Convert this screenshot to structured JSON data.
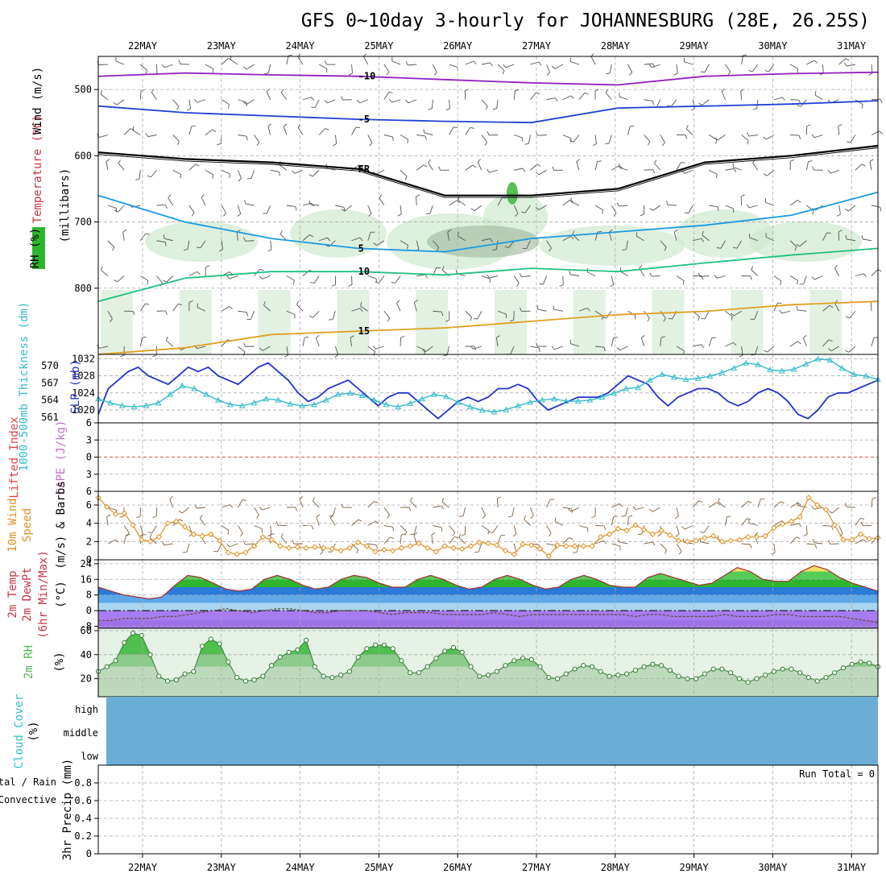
{
  "title": "GFS 0~10day 3-hourly for JOHANNESBURG (28E, 26.25S)",
  "dates": [
    "22MAY",
    "23MAY",
    "24MAY",
    "25MAY",
    "26MAY",
    "27MAY",
    "28MAY",
    "29MAY",
    "30MAY",
    "31MAY"
  ],
  "run_total": "Run Total = 0",
  "colors": {
    "grid": "#aaaaaa",
    "rh_band": "#2db52d",
    "pressure_slp": "#2233cc",
    "thickness": "#33bbcc",
    "temp_band": "#3377dd",
    "dewpt_band": "#a77cf0",
    "rh2m": "#55b855",
    "cloud": "#6aaed6",
    "wind10": "#e09020",
    "barb": "#806040"
  },
  "chart_data": [
    {
      "type": "contour",
      "name": "upper_air",
      "ylabel": "Wind (m/s)",
      "ylabel_parts": [
        "RH (%)",
        "Temperature (°C)",
        "Wind (m/s)"
      ],
      "yunit_label": "(millibars)",
      "yticks": [
        500,
        600,
        700,
        800
      ],
      "ylim": [
        900,
        450
      ],
      "temperature_contours": [
        {
          "label": "-10",
          "color": "#9020c0",
          "level_mb": [
            480,
            475,
            478,
            480,
            485,
            490,
            493,
            480,
            476,
            474
          ]
        },
        {
          "label": "-5",
          "color": "#2040d0",
          "level_mb": [
            525,
            535,
            540,
            545,
            548,
            550,
            528,
            525,
            522,
            517
          ]
        },
        {
          "label": "FR",
          "color": "#000000",
          "level_mb": [
            595,
            605,
            610,
            620,
            660,
            660,
            650,
            610,
            600,
            585
          ]
        },
        {
          "label": "5",
          "color": "#1a9ae0",
          "level_mb": [
            660,
            700,
            725,
            740,
            745,
            725,
            715,
            705,
            690,
            655
          ]
        },
        {
          "label": "10",
          "color": "#20c080",
          "level_mb": [
            820,
            785,
            775,
            775,
            780,
            770,
            775,
            762,
            750,
            740
          ]
        },
        {
          "label": "15",
          "color": "#e0a020",
          "level_mb": [
            900,
            890,
            870,
            865,
            860,
            850,
            840,
            835,
            825,
            820
          ]
        }
      ]
    },
    {
      "type": "line",
      "name": "slp_thickness",
      "ylabel_left": "1000-500mb Thickness (dm)",
      "ylabel_right": "SLP (mb)",
      "yticks_thickness": [
        561,
        564,
        567,
        570
      ],
      "yticks_slp": [
        1020,
        1024,
        1028,
        1032
      ],
      "series": [
        {
          "name": "SLP (mb)",
          "values": [
            1019,
            1025,
            1027,
            1029,
            1030,
            1028,
            1027,
            1026,
            1028,
            1030,
            1029,
            1030,
            1028,
            1027,
            1026,
            1028,
            1030,
            1031,
            1029,
            1027,
            1024,
            1022,
            1023,
            1025,
            1026,
            1027,
            1025,
            1023,
            1021,
            1023,
            1024,
            1024,
            1022,
            1020,
            1018,
            1020,
            1022,
            1023,
            1022,
            1023,
            1025,
            1025,
            1026,
            1025,
            1022,
            1020,
            1021,
            1022,
            1023,
            1023,
            1023,
            1024,
            1026,
            1028,
            1027,
            1026,
            1023,
            1021,
            1023,
            1024,
            1025,
            1025,
            1024,
            1022,
            1021,
            1022,
            1024,
            1025,
            1024,
            1022,
            1019,
            1018,
            1020,
            1023,
            1024,
            1024,
            1025,
            1026,
            1027
          ]
        },
        {
          "name": "Thickness (dm)",
          "values": [
            564.2,
            563.5,
            563,
            562.8,
            563,
            563.5,
            565,
            566.5,
            566,
            565,
            564,
            563.2,
            563,
            563.5,
            564.2,
            564,
            563.3,
            563,
            563.2,
            564,
            565,
            565.2,
            564.8,
            564,
            563.2,
            562.8,
            563.4,
            564.2,
            565,
            564.6,
            563.6,
            562.8,
            562.2,
            561.9,
            562.3,
            563,
            563.6,
            564,
            564.2,
            563.8,
            563.8,
            564,
            564.5,
            565.2,
            566,
            566.2,
            567.5,
            568.5,
            568,
            567.6,
            567.8,
            568.2,
            568.8,
            569.6,
            570.5,
            570.2,
            569.3,
            569.1,
            569.4,
            570.3,
            571.2,
            571,
            569.6,
            568.5,
            568.2,
            567.6
          ]
        }
      ]
    },
    {
      "type": "line",
      "name": "instability",
      "ylabel_left": "Lifted Index",
      "ylabel_right": "CAPE (J/kg)",
      "yticks": [
        -6,
        -3,
        0,
        3,
        6
      ],
      "ytick_labels": [
        "6",
        "3",
        "0",
        "3",
        "6"
      ],
      "reference_line": 0
    },
    {
      "type": "line",
      "name": "wind10m",
      "ylabel": "10m Wind Speed (m/s) & Barbs",
      "ylabel_parts": [
        "10m Wind",
        "Speed",
        "(m/s) & Barbs"
      ],
      "yticks": [
        0,
        2,
        4,
        6
      ],
      "ylim": [
        0,
        7.5
      ],
      "series": [
        {
          "name": "10m Wind Speed",
          "values": [
            6.8,
            5.8,
            5.0,
            5.1,
            3.8,
            2.2,
            2.0,
            2.5,
            4.0,
            4.2,
            3.6,
            2.8,
            2.6,
            2.8,
            2.1,
            0.8,
            0.6,
            0.8,
            1.5,
            2.5,
            2.2,
            1.5,
            1.3,
            1.4,
            1.3,
            1.4,
            1.3,
            1.2,
            1.0,
            1.3,
            1.9,
            1.5,
            0.9,
            1.1,
            1.0,
            1.3,
            1.5,
            1.8,
            1.3,
            0.9,
            1.5,
            1.3,
            1.2,
            1.5,
            1.9,
            1.8,
            1.6,
            1.0,
            0.6,
            1.7,
            1.6,
            1.2,
            0.4,
            1.6,
            1.5,
            1.5,
            1.5,
            1.5,
            2.5,
            2.8,
            3.4,
            3.2,
            3.8,
            3.3,
            2.8,
            3.2,
            2.7,
            2.1,
            2.0,
            2.1,
            2.4,
            2.6,
            2.0,
            2.1,
            2.2,
            2.5,
            2.5,
            2.6,
            3.5,
            3.9,
            4.2,
            4.7,
            6.8,
            6.0,
            5.5,
            3.8,
            2.2,
            2.2,
            2.8,
            2.3,
            2.4
          ]
        }
      ]
    },
    {
      "type": "area",
      "name": "temperature2m",
      "ylabel": "2m Temp 2m DewPt (6hr Min/Max) (°C)",
      "ylabel_parts": [
        "2m Temp",
        "2m DewPt",
        "(6hr Min/Max)",
        "(°C)"
      ],
      "yticks": [
        -8,
        0,
        8,
        16,
        24
      ],
      "ylim": [
        -9,
        26
      ],
      "series": [
        {
          "name": "2m Temp",
          "values": [
            12,
            10,
            8,
            7,
            6,
            7,
            13,
            18,
            17,
            14,
            11,
            10,
            11,
            16,
            18,
            16,
            13,
            11,
            12,
            16,
            18,
            17,
            14,
            12,
            12,
            16,
            18,
            16,
            13,
            11,
            12,
            16,
            18,
            16,
            13,
            11,
            12,
            16,
            18,
            16,
            13,
            12,
            12,
            17,
            19,
            17,
            15,
            13,
            14,
            18,
            22,
            20,
            16,
            15,
            15,
            20,
            23,
            21,
            17,
            14,
            12,
            10
          ]
        },
        {
          "name": "2m DewPt",
          "values": [
            -5,
            -5,
            -4,
            -4,
            -4,
            -3,
            -3,
            -2,
            -1,
            0,
            1,
            0,
            -1,
            0,
            1,
            1,
            0,
            -1,
            -1,
            0,
            0,
            0,
            -1,
            -2,
            -1,
            -1,
            -1,
            -2,
            -2,
            -2,
            -2,
            -1,
            -2,
            -3,
            -2,
            -2,
            -2,
            -2,
            -2,
            -2,
            -2,
            -2,
            -3,
            -2,
            -2,
            -3,
            -3,
            -3,
            -3,
            -2,
            -3,
            -3,
            -3,
            -2,
            -2,
            -3,
            -3,
            -3,
            -3,
            -4,
            -5,
            -6
          ]
        }
      ]
    },
    {
      "type": "area",
      "name": "rh2m",
      "ylabel": "2m RH (%)",
      "yticks": [
        20,
        40,
        60
      ],
      "ylim": [
        5,
        62
      ],
      "series": [
        {
          "name": "2m RH",
          "values": [
            26,
            30,
            35,
            50,
            58,
            56,
            40,
            22,
            18,
            19,
            24,
            26,
            47,
            53,
            49,
            34,
            21,
            18,
            19,
            22,
            31,
            38,
            42,
            44,
            52,
            30,
            22,
            21,
            23,
            26,
            38,
            45,
            48,
            48,
            45,
            35,
            25,
            25,
            30,
            37,
            43,
            46,
            42,
            30,
            22,
            23,
            26,
            31,
            35,
            37,
            36,
            30,
            21,
            20,
            24,
            28,
            31,
            30,
            26,
            22,
            23,
            24,
            27,
            30,
            32,
            31,
            27,
            22,
            20,
            20,
            24,
            28,
            28,
            25,
            20,
            17,
            20,
            23,
            26,
            28,
            28,
            25,
            21,
            18,
            21,
            25,
            29,
            32,
            34,
            33,
            30
          ]
        }
      ]
    },
    {
      "type": "heatmap",
      "name": "cloud_cover",
      "ylabel": "Cloud Cover (%)",
      "rows": [
        "high",
        "middle",
        "low"
      ]
    },
    {
      "type": "bar",
      "name": "precip",
      "ylabel": "3hr Precip (mm)",
      "legend": [
        "Total / Rain",
        "Convective"
      ],
      "yticks": [
        0,
        0.2,
        0.4,
        0.6,
        0.8
      ],
      "ylim": [
        0,
        1
      ],
      "values": []
    }
  ]
}
